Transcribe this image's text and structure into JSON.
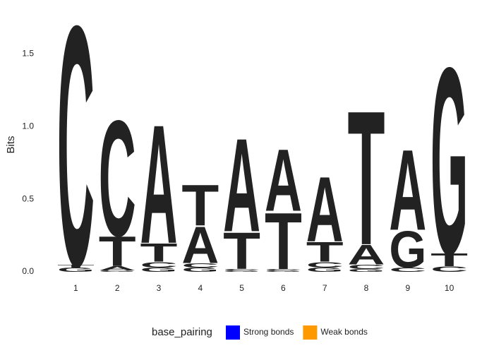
{
  "chart_data": {
    "type": "logo",
    "y_label": "Bits",
    "categories": [
      1,
      2,
      3,
      4,
      5,
      6,
      7,
      8,
      9,
      10
    ],
    "ylim": [
      0,
      1.75
    ],
    "yticks": [
      {
        "value": 0,
        "label": "0.0"
      },
      0.5,
      {
        "value": 1,
        "label": "1.0"
      },
      1.5
    ],
    "legend_title": "base_pairing",
    "series": [
      {
        "name": "Strong bonds",
        "color": "#0000ff",
        "letters": [
          "C",
          "G"
        ]
      },
      {
        "name": "Weak bonds",
        "color": "#ff9900",
        "letters": [
          "A",
          "T"
        ]
      }
    ],
    "stacks": [
      [
        {
          "letter": "G",
          "value": 0.03
        },
        {
          "letter": "T",
          "value": 0.02
        },
        {
          "letter": "C",
          "value": 1.7
        }
      ],
      [
        {
          "letter": "G",
          "value": 0.01
        },
        {
          "letter": "A",
          "value": 0.03
        },
        {
          "letter": "T",
          "value": 0.21
        },
        {
          "letter": "C",
          "value": 0.82
        }
      ],
      [
        {
          "letter": "G",
          "value": 0.03
        },
        {
          "letter": "C",
          "value": 0.04
        },
        {
          "letter": "T",
          "value": 0.13
        },
        {
          "letter": "A",
          "value": 0.84
        }
      ],
      [
        {
          "letter": "G",
          "value": 0.03
        },
        {
          "letter": "C",
          "value": 0.03
        },
        {
          "letter": "A",
          "value": 0.26
        },
        {
          "letter": "T",
          "value": 0.29
        }
      ],
      [
        {
          "letter": "G",
          "value": 0.01
        },
        {
          "letter": "C",
          "value": 0.01
        },
        {
          "letter": "T",
          "value": 0.26
        },
        {
          "letter": "A",
          "value": 0.66
        }
      ],
      [
        {
          "letter": "G",
          "value": 0.01
        },
        {
          "letter": "C",
          "value": 0.01
        },
        {
          "letter": "T",
          "value": 0.4
        },
        {
          "letter": "A",
          "value": 0.44
        }
      ],
      [
        {
          "letter": "G",
          "value": 0.03
        },
        {
          "letter": "C",
          "value": 0.04
        },
        {
          "letter": "T",
          "value": 0.14
        },
        {
          "letter": "A",
          "value": 0.46
        }
      ],
      [
        {
          "letter": "G",
          "value": 0.02
        },
        {
          "letter": "C",
          "value": 0.03
        },
        {
          "letter": "A",
          "value": 0.14
        },
        {
          "letter": "T",
          "value": 0.95
        }
      ],
      [
        {
          "letter": "C",
          "value": 0.03
        },
        {
          "letter": "G",
          "value": 0.26
        },
        {
          "letter": "A",
          "value": 0.57
        }
      ],
      [
        {
          "letter": "C",
          "value": 0.04
        },
        {
          "letter": "T",
          "value": 0.09
        },
        {
          "letter": "G",
          "value": 1.32
        }
      ]
    ]
  }
}
